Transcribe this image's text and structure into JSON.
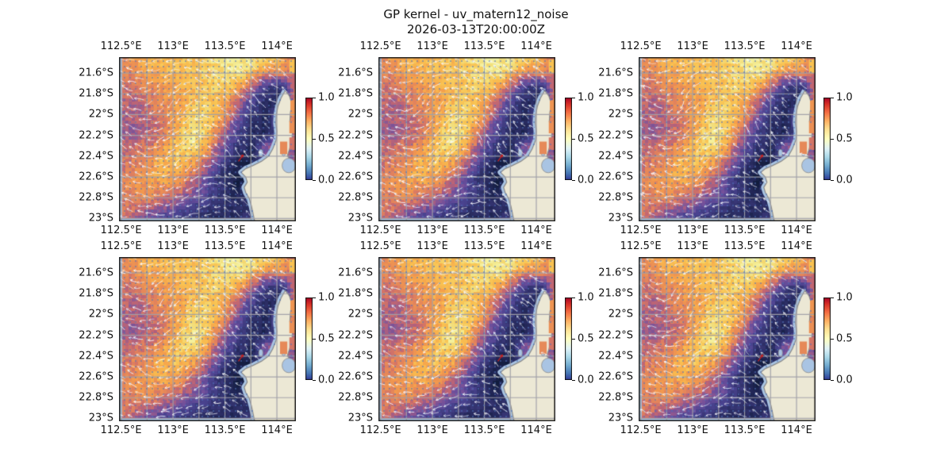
{
  "figure": {
    "title": "GP kernel - uv_matern12_noise",
    "subtitle": "2026-03-13T20:00:00Z",
    "background": "#ffffff"
  },
  "grid": {
    "rows": 2,
    "cols": 3
  },
  "axes": {
    "lon_tick_labels": [
      "112.5°E",
      "113°E",
      "113.5°E",
      "114°E"
    ],
    "lon_tick_values": [
      112.5,
      113.0,
      113.5,
      114.0
    ],
    "lat_tick_labels": [
      "21.6°S",
      "21.8°S",
      "22°S",
      "22.2°S",
      "22.4°S",
      "22.6°S",
      "22.8°S",
      "23°S"
    ],
    "lat_tick_values": [
      21.6,
      21.8,
      22.0,
      22.2,
      22.4,
      22.6,
      22.8,
      23.0
    ],
    "lon_range": [
      112.48,
      114.183
    ],
    "lat_range": [
      21.447,
      23.027
    ],
    "grid_lon_step": 0.25,
    "grid_lat_step": 0.2
  },
  "colorbar": {
    "tick_labels": [
      "1.0",
      "0.5",
      "0.0"
    ],
    "tick_values": [
      1.0,
      0.5,
      0.0
    ],
    "range": [
      0.0,
      1.0
    ],
    "stops_top_to_bottom": [
      [
        0.0,
        "#a50026"
      ],
      [
        0.08,
        "#d73027"
      ],
      [
        0.18,
        "#f46d43"
      ],
      [
        0.28,
        "#fdae61"
      ],
      [
        0.38,
        "#fee090"
      ],
      [
        0.5,
        "#ffffbf"
      ],
      [
        0.62,
        "#e0f3f8"
      ],
      [
        0.72,
        "#abd9e9"
      ],
      [
        0.82,
        "#74add1"
      ],
      [
        0.92,
        "#4575b4"
      ],
      [
        1.0,
        "#313695"
      ]
    ]
  },
  "colors": {
    "land": "#ece8d5",
    "coastline": "#8a8a8a",
    "water": "#a9c4e3",
    "gridline": "rgba(160,160,168,0.95)",
    "frame": "#1c1c1c",
    "quiver": "#ffffff",
    "obs_dots": "rgba(80,115,185,0.85)",
    "red_arrow": "#c42020",
    "heat_stops": [
      [
        0.0,
        "#111c3c"
      ],
      [
        0.1,
        "#1f2553"
      ],
      [
        0.22,
        "#33336f"
      ],
      [
        0.34,
        "#4a4390"
      ],
      [
        0.45,
        "#6f4f9c"
      ],
      [
        0.52,
        "#9a5b8b"
      ],
      [
        0.58,
        "#c26672"
      ],
      [
        0.65,
        "#e0805e"
      ],
      [
        0.75,
        "#f59e4b"
      ],
      [
        0.85,
        "#f9c251"
      ],
      [
        0.93,
        "#f3e07c"
      ],
      [
        1.0,
        "#f4f5a6"
      ]
    ]
  },
  "chart_data": {
    "type": "heatmap",
    "title": "GP kernel - uv_matern12_noise",
    "subtitle": "2026-03-13T20:00:00Z",
    "panels": [
      {
        "row": 0,
        "col": 0
      },
      {
        "row": 0,
        "col": 1
      },
      {
        "row": 0,
        "col": 2
      },
      {
        "row": 1,
        "col": 0
      },
      {
        "row": 1,
        "col": 1
      },
      {
        "row": 1,
        "col": 2
      }
    ],
    "x": {
      "unit": "°E",
      "range": [
        112.48,
        114.183
      ]
    },
    "y": {
      "unit": "°S",
      "range": [
        21.447,
        23.027
      ]
    },
    "value_range": [
      0.0,
      1.0
    ],
    "field_values_rows_north_to_south": [
      [
        0.72,
        0.75,
        0.8,
        0.83,
        0.82,
        0.86,
        0.9,
        0.95,
        1.0,
        0.98,
        0.9,
        0.8,
        0.6
      ],
      [
        0.65,
        0.7,
        0.76,
        0.8,
        0.82,
        0.84,
        0.88,
        0.93,
        0.97,
        0.85,
        0.7,
        0.72,
        0.55
      ],
      [
        0.6,
        0.63,
        0.7,
        0.75,
        0.78,
        0.82,
        0.86,
        0.9,
        0.8,
        0.55,
        0.3,
        0.2,
        0.65
      ],
      [
        0.58,
        0.56,
        0.62,
        0.7,
        0.76,
        0.84,
        0.88,
        0.8,
        0.6,
        0.35,
        0.15,
        0.1,
        0.7
      ],
      [
        0.56,
        0.54,
        0.58,
        0.66,
        0.78,
        0.9,
        0.92,
        0.75,
        0.48,
        0.22,
        0.1,
        0.5,
        0.7
      ],
      [
        0.55,
        0.52,
        0.56,
        0.64,
        0.8,
        0.96,
        0.88,
        0.6,
        0.35,
        0.15,
        0.1,
        0.5,
        0.62
      ],
      [
        0.58,
        0.6,
        0.64,
        0.74,
        0.88,
        0.94,
        0.75,
        0.48,
        0.25,
        0.12,
        0.5,
        0.5,
        0.5
      ],
      [
        0.6,
        0.66,
        0.72,
        0.82,
        0.86,
        0.78,
        0.58,
        0.32,
        0.1,
        0.05,
        0.5,
        0.5,
        0.5
      ],
      [
        0.62,
        0.68,
        0.76,
        0.8,
        0.74,
        0.62,
        0.42,
        0.18,
        0.03,
        0.06,
        0.5,
        0.5,
        0.5
      ],
      [
        0.64,
        0.7,
        0.72,
        0.68,
        0.62,
        0.52,
        0.38,
        0.22,
        0.1,
        0.14,
        0.5,
        0.5,
        0.5
      ],
      [
        0.66,
        0.64,
        0.6,
        0.52,
        0.45,
        0.32,
        0.26,
        0.2,
        0.16,
        0.2,
        0.5,
        0.5,
        0.5
      ],
      [
        0.6,
        0.5,
        0.38,
        0.28,
        0.22,
        0.15,
        0.12,
        0.1,
        0.15,
        0.22,
        0.5,
        0.5,
        0.5
      ]
    ],
    "coastline_lonlat": [
      [
        114.08,
        21.77
      ],
      [
        114.04,
        21.84
      ],
      [
        114.01,
        21.92
      ],
      [
        113.995,
        22.0
      ],
      [
        113.99,
        22.08
      ],
      [
        114.0,
        22.16
      ],
      [
        113.995,
        22.24
      ],
      [
        113.96,
        22.33
      ],
      [
        113.92,
        22.4
      ],
      [
        113.85,
        22.45
      ],
      [
        113.77,
        22.49
      ],
      [
        113.7,
        22.52
      ],
      [
        113.655,
        22.555
      ],
      [
        113.7,
        22.6
      ],
      [
        113.715,
        22.65
      ],
      [
        113.685,
        22.7
      ],
      [
        113.7,
        22.75
      ],
      [
        113.735,
        22.81
      ],
      [
        113.755,
        22.88
      ],
      [
        113.77,
        22.95
      ],
      [
        113.785,
        23.02
      ],
      [
        113.8,
        23.1
      ],
      [
        114.3,
        23.1
      ],
      [
        114.3,
        22.54
      ],
      [
        114.22,
        22.5
      ],
      [
        114.155,
        22.455
      ],
      [
        114.1,
        22.4
      ],
      [
        114.125,
        22.32
      ],
      [
        114.145,
        22.24
      ],
      [
        114.15,
        22.16
      ],
      [
        114.125,
        22.07
      ],
      [
        114.13,
        21.98
      ],
      [
        114.145,
        21.9
      ],
      [
        114.12,
        21.82
      ]
    ],
    "lagoons_lonlat": [
      {
        "c": [
          114.115,
          22.49
        ],
        "rx": 0.065,
        "ry": 0.07
      },
      {
        "c": [
          114.065,
          22.345
        ],
        "rx": 0.022,
        "ry": 0.055
      },
      {
        "c": [
          113.845,
          22.37
        ],
        "rx": 0.02,
        "ry": 0.035
      }
    ],
    "gulf_cells": [
      {
        "lon": [
          114.12,
          114.183
        ],
        "lat": [
          21.47,
          21.6
        ],
        "v": 0.85
      },
      {
        "lon": [
          114.14,
          114.183
        ],
        "lat": [
          21.62,
          21.74
        ],
        "v": 0.58
      },
      {
        "lon": [
          114.13,
          114.183
        ],
        "lat": [
          21.86,
          22.02
        ],
        "v": 0.72
      },
      {
        "lon": [
          114.12,
          114.183
        ],
        "lat": [
          22.06,
          22.18
        ],
        "v": 0.7
      },
      {
        "lon": [
          114.12,
          114.18
        ],
        "lat": [
          22.22,
          22.34
        ],
        "v": 0.62
      },
      {
        "lon": [
          114.03,
          114.1
        ],
        "lat": [
          22.26,
          22.38
        ],
        "v": 0.68
      }
    ],
    "overlays": {
      "quiver_arrows_color": "white",
      "observation_dots_color": "steel-blue",
      "red_arrow_lonlat": [
        113.63,
        22.45
      ]
    }
  }
}
